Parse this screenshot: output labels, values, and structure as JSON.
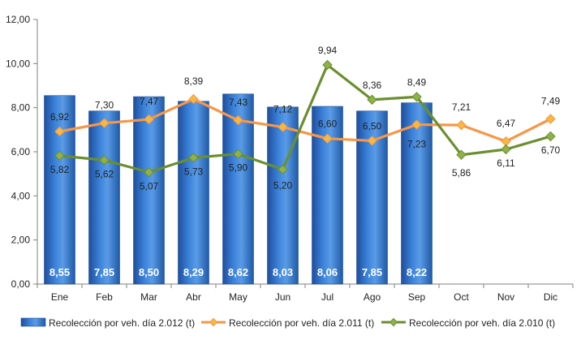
{
  "chart_data": {
    "type": "bar",
    "categories": [
      "Ene",
      "Feb",
      "Mar",
      "Abr",
      "May",
      "Jun",
      "Jul",
      "Ago",
      "Sep",
      "Oct",
      "Nov",
      "Dic"
    ],
    "series": [
      {
        "name": "Recolección por veh. día 2.012 (t)",
        "type": "bar",
        "color": "#2e6fc6",
        "values": [
          8.55,
          7.85,
          8.5,
          8.29,
          8.62,
          8.03,
          8.06,
          7.85,
          8.22,
          null,
          null,
          null
        ],
        "labels": [
          "8,55",
          "7,85",
          "8,50",
          "8,29",
          "8,62",
          "8,03",
          "8,06",
          "7,85",
          "8,22",
          null,
          null,
          null
        ]
      },
      {
        "name": "Recolección por veh. día 2.011 (t)",
        "type": "line",
        "color": "#f79646",
        "marker_color": "#f5b942",
        "values": [
          6.92,
          7.3,
          7.47,
          8.39,
          7.43,
          7.12,
          6.6,
          6.5,
          7.23,
          7.21,
          6.47,
          7.49
        ],
        "labels": [
          "6,92",
          "7,30",
          "7,47",
          "8,39",
          "7,43",
          "7,12",
          "6,60",
          "6,50",
          "7,23",
          "7,21",
          "6,47",
          "7,49"
        ]
      },
      {
        "name": "Recolección por veh. día 2.010 (t)",
        "type": "line",
        "color": "#6a8f2e",
        "marker_color": "#8fb14a",
        "values": [
          5.82,
          5.62,
          5.07,
          5.73,
          5.9,
          5.2,
          9.94,
          8.36,
          8.49,
          5.86,
          6.11,
          6.7
        ],
        "labels": [
          "5,82",
          "5,62",
          "5,07",
          "5,73",
          "5,90",
          "5,20",
          "9,94",
          "8,36",
          "8,49",
          "5,86",
          "6,11",
          "6,70"
        ]
      }
    ],
    "y_ticks": [
      "0,00",
      "2,00",
      "4,00",
      "6,00",
      "8,00",
      "10,00",
      "12,00"
    ],
    "ylim": [
      0,
      12
    ],
    "grid": false,
    "legend": "bottom",
    "title": "",
    "xlabel": "",
    "ylabel": ""
  }
}
